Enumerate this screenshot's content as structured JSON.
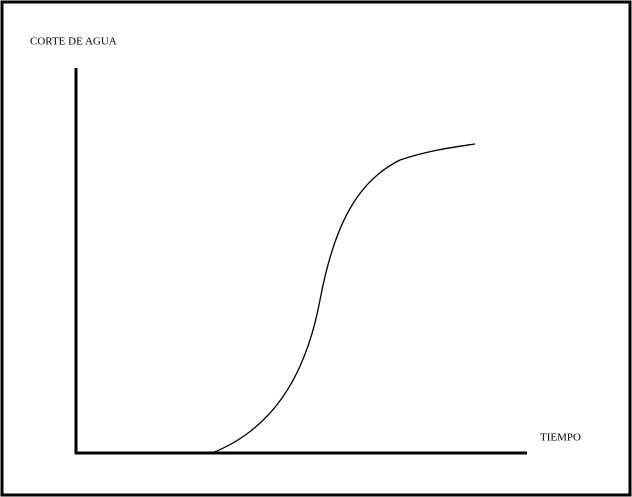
{
  "labels": {
    "y_axis": "CORTE DE AGUA",
    "x_axis": "TIEMPO"
  }
}
